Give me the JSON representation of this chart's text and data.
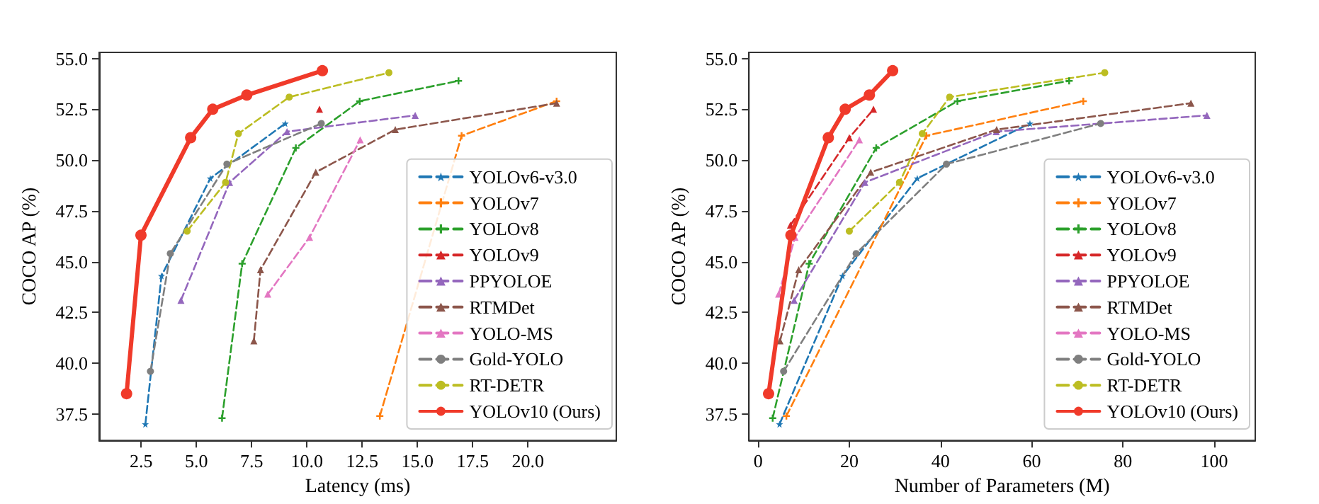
{
  "chart_data": [
    {
      "type": "line",
      "xlabel": "Latency (ms)",
      "ylabel": "COCO AP (%)",
      "xlim": [
        0.6,
        24.0
      ],
      "ylim": [
        36.2,
        55.3
      ],
      "xticks": [
        {
          "value": 2.5,
          "label": "2.5"
        },
        {
          "value": 5,
          "label": "5.0"
        },
        {
          "value": 7.5,
          "label": "7.5"
        },
        {
          "value": 10,
          "label": "10.0"
        },
        {
          "value": 12.5,
          "label": "12.5"
        },
        {
          "value": 15,
          "label": "15.0"
        },
        {
          "value": 17.5,
          "label": "17.5"
        },
        {
          "value": 20,
          "label": "20.0"
        }
      ],
      "yticks": [
        {
          "value": 37.5,
          "label": "37.5"
        },
        {
          "value": 40,
          "label": "40.0"
        },
        {
          "value": 42.5,
          "label": "42.5"
        },
        {
          "value": 45,
          "label": "45.0"
        },
        {
          "value": 47.5,
          "label": "47.5"
        },
        {
          "value": 50,
          "label": "50.0"
        },
        {
          "value": 52.5,
          "label": "52.5"
        },
        {
          "value": 55,
          "label": "55.0"
        }
      ],
      "grid": false,
      "legend": "bottom right",
      "line_style": "dashed",
      "series": [
        {
          "name": "YOLOv6-v3.0",
          "color": "#1f77b4",
          "marker": "star",
          "x": [
            2.69,
            3.42,
            5.63,
            9.02
          ],
          "values": [
            37.0,
            44.3,
            49.1,
            51.8
          ]
        },
        {
          "name": "YOLOv7",
          "color": "#ff7f0e",
          "marker": "cross",
          "x": [
            13.3,
            17.0,
            21.3
          ],
          "values": [
            37.4,
            51.2,
            52.9
          ]
        },
        {
          "name": "YOLOv8",
          "color": "#2ca02c",
          "marker": "cross",
          "x": [
            6.16,
            7.07,
            9.5,
            12.39,
            16.86
          ],
          "values": [
            37.3,
            44.9,
            50.6,
            52.9,
            53.9
          ]
        },
        {
          "name": "YOLOv9",
          "color": "#d62728",
          "marker": "triangle",
          "x": [
            10.57
          ],
          "values": [
            52.5
          ]
        },
        {
          "name": "PPYOLOE",
          "color": "#9467bd",
          "marker": "triangle",
          "x": [
            4.3,
            6.5,
            9.1,
            14.9
          ],
          "values": [
            43.1,
            48.9,
            51.4,
            52.2
          ]
        },
        {
          "name": "RTMDet",
          "color": "#8c564b",
          "marker": "triangle",
          "x": [
            7.6,
            7.9,
            10.4,
            14.0,
            21.3
          ],
          "values": [
            41.1,
            44.6,
            49.4,
            51.5,
            52.8
          ]
        },
        {
          "name": "YOLO-MS",
          "color": "#e377c2",
          "marker": "triangle",
          "x": [
            8.23,
            10.12,
            12.41
          ],
          "values": [
            43.4,
            46.2,
            51.0
          ]
        },
        {
          "name": "Gold-YOLO",
          "color": "#7f7f7f",
          "marker": "circle",
          "x": [
            2.92,
            3.82,
            6.38,
            10.65
          ],
          "values": [
            39.6,
            45.4,
            49.8,
            51.8
          ]
        },
        {
          "name": "RT-DETR",
          "color": "#bcbd22",
          "marker": "circle",
          "x": [
            4.58,
            6.32,
            6.9,
            9.2,
            13.71
          ],
          "values": [
            46.5,
            48.9,
            51.3,
            53.1,
            54.3
          ]
        },
        {
          "name": "YOLOv10 (Ours)",
          "color": "#f03a2a",
          "marker": "circle",
          "line_style": "solid",
          "x": [
            1.84,
            2.49,
            4.74,
            5.74,
            7.28,
            10.7
          ],
          "values": [
            38.5,
            46.3,
            51.1,
            52.5,
            53.2,
            54.4
          ]
        }
      ]
    },
    {
      "type": "line",
      "xlabel": "Number of Parameters (M)",
      "ylabel": "COCO AP (%)",
      "xlim": [
        -2,
        109
      ],
      "ylim": [
        36.2,
        55.3
      ],
      "xticks": [
        0,
        20,
        40,
        60,
        80,
        100
      ],
      "yticks": [
        {
          "value": 37.5,
          "label": "37.5"
        },
        {
          "value": 40,
          "label": "40.0"
        },
        {
          "value": 42.5,
          "label": "42.5"
        },
        {
          "value": 45,
          "label": "45.0"
        },
        {
          "value": 47.5,
          "label": "47.5"
        },
        {
          "value": 50,
          "label": "50.0"
        },
        {
          "value": 52.5,
          "label": "52.5"
        },
        {
          "value": 55,
          "label": "55.0"
        }
      ],
      "grid": false,
      "legend": "bottom right",
      "line_style": "dashed",
      "series": [
        {
          "name": "YOLOv6-v3.0",
          "color": "#1f77b4",
          "marker": "star",
          "x": [
            4.7,
            18.5,
            34.9,
            59.6
          ],
          "values": [
            37.0,
            44.3,
            49.1,
            51.8
          ]
        },
        {
          "name": "YOLOv7",
          "color": "#ff7f0e",
          "marker": "cross",
          "x": [
            6.2,
            36.9,
            71.3
          ],
          "values": [
            37.4,
            51.2,
            52.9
          ]
        },
        {
          "name": "YOLOv8",
          "color": "#2ca02c",
          "marker": "cross",
          "x": [
            3.2,
            11.2,
            25.9,
            43.7,
            68.2
          ],
          "values": [
            37.3,
            44.9,
            50.6,
            52.9,
            53.9
          ]
        },
        {
          "name": "YOLOv9",
          "color": "#d62728",
          "marker": "triangle",
          "x": [
            7.1,
            20.0,
            25.3
          ],
          "values": [
            46.8,
            51.1,
            52.5
          ]
        },
        {
          "name": "PPYOLOE",
          "color": "#9467bd",
          "marker": "triangle",
          "x": [
            7.9,
            23.4,
            52.2,
            98.4
          ],
          "values": [
            43.1,
            48.9,
            51.4,
            52.2
          ]
        },
        {
          "name": "RTMDet",
          "color": "#8c564b",
          "marker": "triangle",
          "x": [
            4.8,
            8.9,
            24.7,
            52.3,
            94.9
          ],
          "values": [
            41.1,
            44.6,
            49.4,
            51.5,
            52.8
          ]
        },
        {
          "name": "YOLO-MS",
          "color": "#e377c2",
          "marker": "triangle",
          "x": [
            4.5,
            8.1,
            22.2
          ],
          "values": [
            43.4,
            46.2,
            51.0
          ]
        },
        {
          "name": "Gold-YOLO",
          "color": "#7f7f7f",
          "marker": "circle",
          "x": [
            5.6,
            21.5,
            41.3,
            75.1
          ],
          "values": [
            39.6,
            45.4,
            49.8,
            51.8
          ]
        },
        {
          "name": "RT-DETR",
          "color": "#bcbd22",
          "marker": "circle",
          "x": [
            20.0,
            31.0,
            36.0,
            42.0,
            76.0
          ],
          "values": [
            46.5,
            48.9,
            51.3,
            53.1,
            54.3
          ]
        },
        {
          "name": "YOLOv10 (Ours)",
          "color": "#f03a2a",
          "marker": "circle",
          "line_style": "solid",
          "x": [
            2.3,
            7.2,
            15.4,
            19.1,
            24.4,
            29.5
          ],
          "values": [
            38.5,
            46.3,
            51.1,
            52.5,
            53.2,
            54.4
          ]
        }
      ]
    }
  ]
}
